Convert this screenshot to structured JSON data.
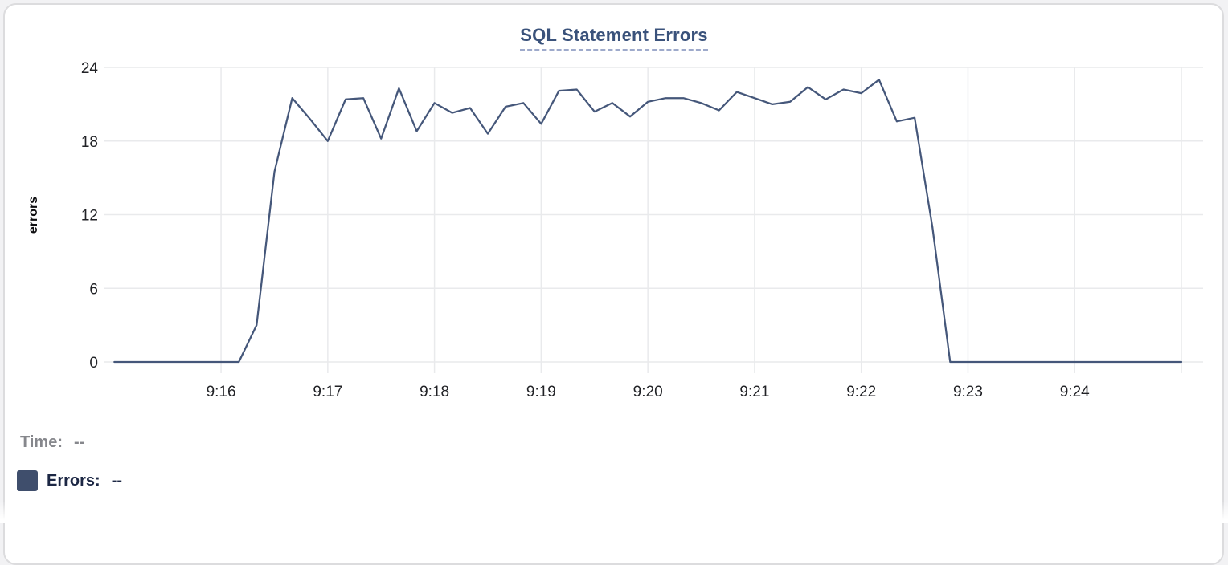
{
  "chart_data": {
    "type": "line",
    "title": "SQL Statement Errors",
    "xlabel": "",
    "ylabel": "errors",
    "ylim": [
      0,
      24
    ],
    "yticks": [
      0,
      6,
      12,
      18,
      24
    ],
    "x_tick_labels": [
      "9:16",
      "9:17",
      "9:18",
      "9:19",
      "9:20",
      "9:21",
      "9:22",
      "9:23",
      "9:24"
    ],
    "x_range": [
      "9:15:00",
      "9:25:00"
    ],
    "interval_seconds": 10,
    "grid": true,
    "legend_position": "bottom-left",
    "series": [
      {
        "name": "Errors",
        "color": "#45577a",
        "points": [
          [
            "9:15:00",
            0
          ],
          [
            "9:15:10",
            0
          ],
          [
            "9:15:20",
            0
          ],
          [
            "9:15:30",
            0
          ],
          [
            "9:15:40",
            0
          ],
          [
            "9:15:50",
            0
          ],
          [
            "9:16:00",
            0
          ],
          [
            "9:16:10",
            0
          ],
          [
            "9:16:20",
            3
          ],
          [
            "9:16:30",
            15.5
          ],
          [
            "9:16:40",
            21.5
          ],
          [
            "9:16:50",
            19.8
          ],
          [
            "9:17:00",
            18
          ],
          [
            "9:17:10",
            21.4
          ],
          [
            "9:17:20",
            21.5
          ],
          [
            "9:17:30",
            18.2
          ],
          [
            "9:17:40",
            22.3
          ],
          [
            "9:17:50",
            18.8
          ],
          [
            "9:18:00",
            21.1
          ],
          [
            "9:18:10",
            20.3
          ],
          [
            "9:18:20",
            20.7
          ],
          [
            "9:18:30",
            18.6
          ],
          [
            "9:18:40",
            20.8
          ],
          [
            "9:18:50",
            21.1
          ],
          [
            "9:19:00",
            19.4
          ],
          [
            "9:19:10",
            22.1
          ],
          [
            "9:19:20",
            22.2
          ],
          [
            "9:19:30",
            20.4
          ],
          [
            "9:19:40",
            21.1
          ],
          [
            "9:19:50",
            20
          ],
          [
            "9:20:00",
            21.2
          ],
          [
            "9:20:10",
            21.5
          ],
          [
            "9:20:20",
            21.5
          ],
          [
            "9:20:30",
            21.1
          ],
          [
            "9:20:40",
            20.5
          ],
          [
            "9:20:50",
            22
          ],
          [
            "9:21:00",
            21.5
          ],
          [
            "9:21:10",
            21
          ],
          [
            "9:21:20",
            21.2
          ],
          [
            "9:21:30",
            22.4
          ],
          [
            "9:21:40",
            21.4
          ],
          [
            "9:21:50",
            22.2
          ],
          [
            "9:22:00",
            21.9
          ],
          [
            "9:22:10",
            23
          ],
          [
            "9:22:20",
            19.6
          ],
          [
            "9:22:30",
            19.9
          ],
          [
            "9:22:40",
            11
          ],
          [
            "9:22:50",
            0
          ],
          [
            "9:23:00",
            0
          ],
          [
            "9:23:10",
            0
          ],
          [
            "9:23:20",
            0
          ],
          [
            "9:23:30",
            0
          ],
          [
            "9:23:40",
            0
          ],
          [
            "9:23:50",
            0
          ],
          [
            "9:24:00",
            0
          ],
          [
            "9:24:10",
            0
          ],
          [
            "9:24:20",
            0
          ],
          [
            "9:24:30",
            0
          ],
          [
            "9:24:40",
            0
          ],
          [
            "9:24:50",
            0
          ],
          [
            "9:25:00",
            0
          ]
        ]
      }
    ]
  },
  "legend": {
    "time_label": "Time:",
    "time_value": "--",
    "errors_label": "Errors:",
    "errors_value": "--"
  },
  "colors": {
    "line": "#45577a",
    "swatch": "#3f4e6c",
    "title": "#3a527b",
    "title_underline": "#9eaacb",
    "grid": "#e9eaec",
    "axis_text": "#212226",
    "y_axis_title_text": "#0f0f11",
    "legend_time": "#86878c",
    "legend_errors": "#1c2744",
    "card_border": "#dcdcde",
    "card_bg": "#ffffff",
    "page_bg": "#f2f2f4"
  }
}
